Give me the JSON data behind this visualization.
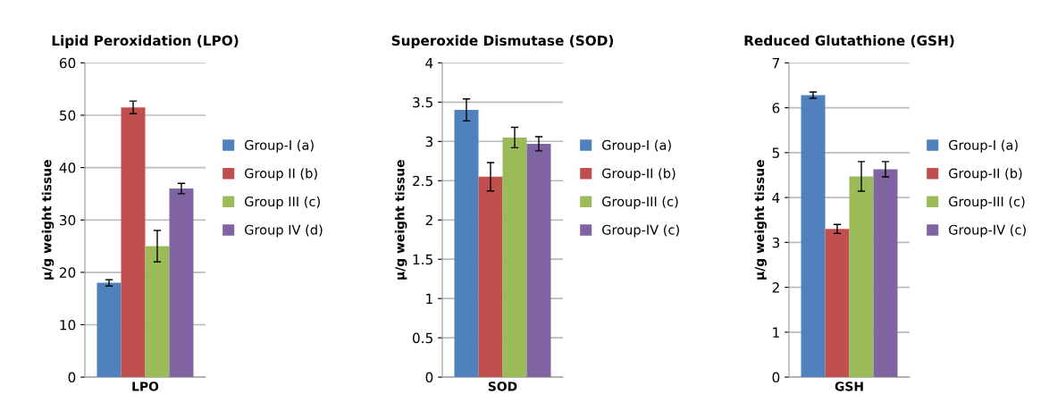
{
  "chart_data": [
    {
      "type": "bar",
      "title": "Lipid Peroxidation (LPO)",
      "ylabel": "µ/g weight tissue",
      "categories": [
        "LPO"
      ],
      "ylim": [
        0,
        60
      ],
      "yticks": [
        0,
        10,
        20,
        30,
        40,
        50,
        60
      ],
      "grid": "y",
      "legend": "right",
      "series": [
        {
          "name": "Group-I (a)",
          "color": "#4f81bd",
          "values": [
            18
          ],
          "errors": [
            0.6
          ]
        },
        {
          "name": "Group II (b)",
          "color": "#c0504d",
          "values": [
            51.5
          ],
          "errors": [
            1.2
          ]
        },
        {
          "name": "Group III (c)",
          "color": "#9bbb59",
          "values": [
            25
          ],
          "errors": [
            3
          ]
        },
        {
          "name": "Group IV (d)",
          "color": "#8064a2",
          "values": [
            36
          ],
          "errors": [
            1
          ]
        }
      ]
    },
    {
      "type": "bar",
      "title": "Superoxide Dismutase (SOD)",
      "ylabel": "µ/g weight tissue",
      "categories": [
        "SOD"
      ],
      "ylim": [
        0,
        4
      ],
      "yticks": [
        0,
        0.5,
        1,
        1.5,
        2,
        2.5,
        3,
        3.5,
        4
      ],
      "grid": "y",
      "legend": "right",
      "series": [
        {
          "name": "Group-I (a)",
          "color": "#4f81bd",
          "values": [
            3.4
          ],
          "errors": [
            0.14
          ]
        },
        {
          "name": "Group-II (b)",
          "color": "#c0504d",
          "values": [
            2.55
          ],
          "errors": [
            0.18
          ]
        },
        {
          "name": "Group-III (c)",
          "color": "#9bbb59",
          "values": [
            3.05
          ],
          "errors": [
            0.13
          ]
        },
        {
          "name": "Group-IV (c)",
          "color": "#8064a2",
          "values": [
            2.97
          ],
          "errors": [
            0.09
          ]
        }
      ]
    },
    {
      "type": "bar",
      "title": "Reduced Glutathione (GSH)",
      "ylabel": "µ/g weight tissue",
      "categories": [
        "GSH"
      ],
      "ylim": [
        0,
        7
      ],
      "yticks": [
        0,
        1,
        2,
        3,
        4,
        5,
        6,
        7
      ],
      "grid": "y",
      "legend": "right",
      "series": [
        {
          "name": "Group-I (a)",
          "color": "#4f81bd",
          "values": [
            6.28
          ],
          "errors": [
            0.07
          ]
        },
        {
          "name": "Group-II (b)",
          "color": "#c0504d",
          "values": [
            3.3
          ],
          "errors": [
            0.1
          ]
        },
        {
          "name": "Group-III (c)",
          "color": "#9bbb59",
          "values": [
            4.47
          ],
          "errors": [
            0.33
          ]
        },
        {
          "name": "Group-IV (c)",
          "color": "#8064a2",
          "values": [
            4.63
          ],
          "errors": [
            0.17
          ]
        }
      ]
    }
  ]
}
